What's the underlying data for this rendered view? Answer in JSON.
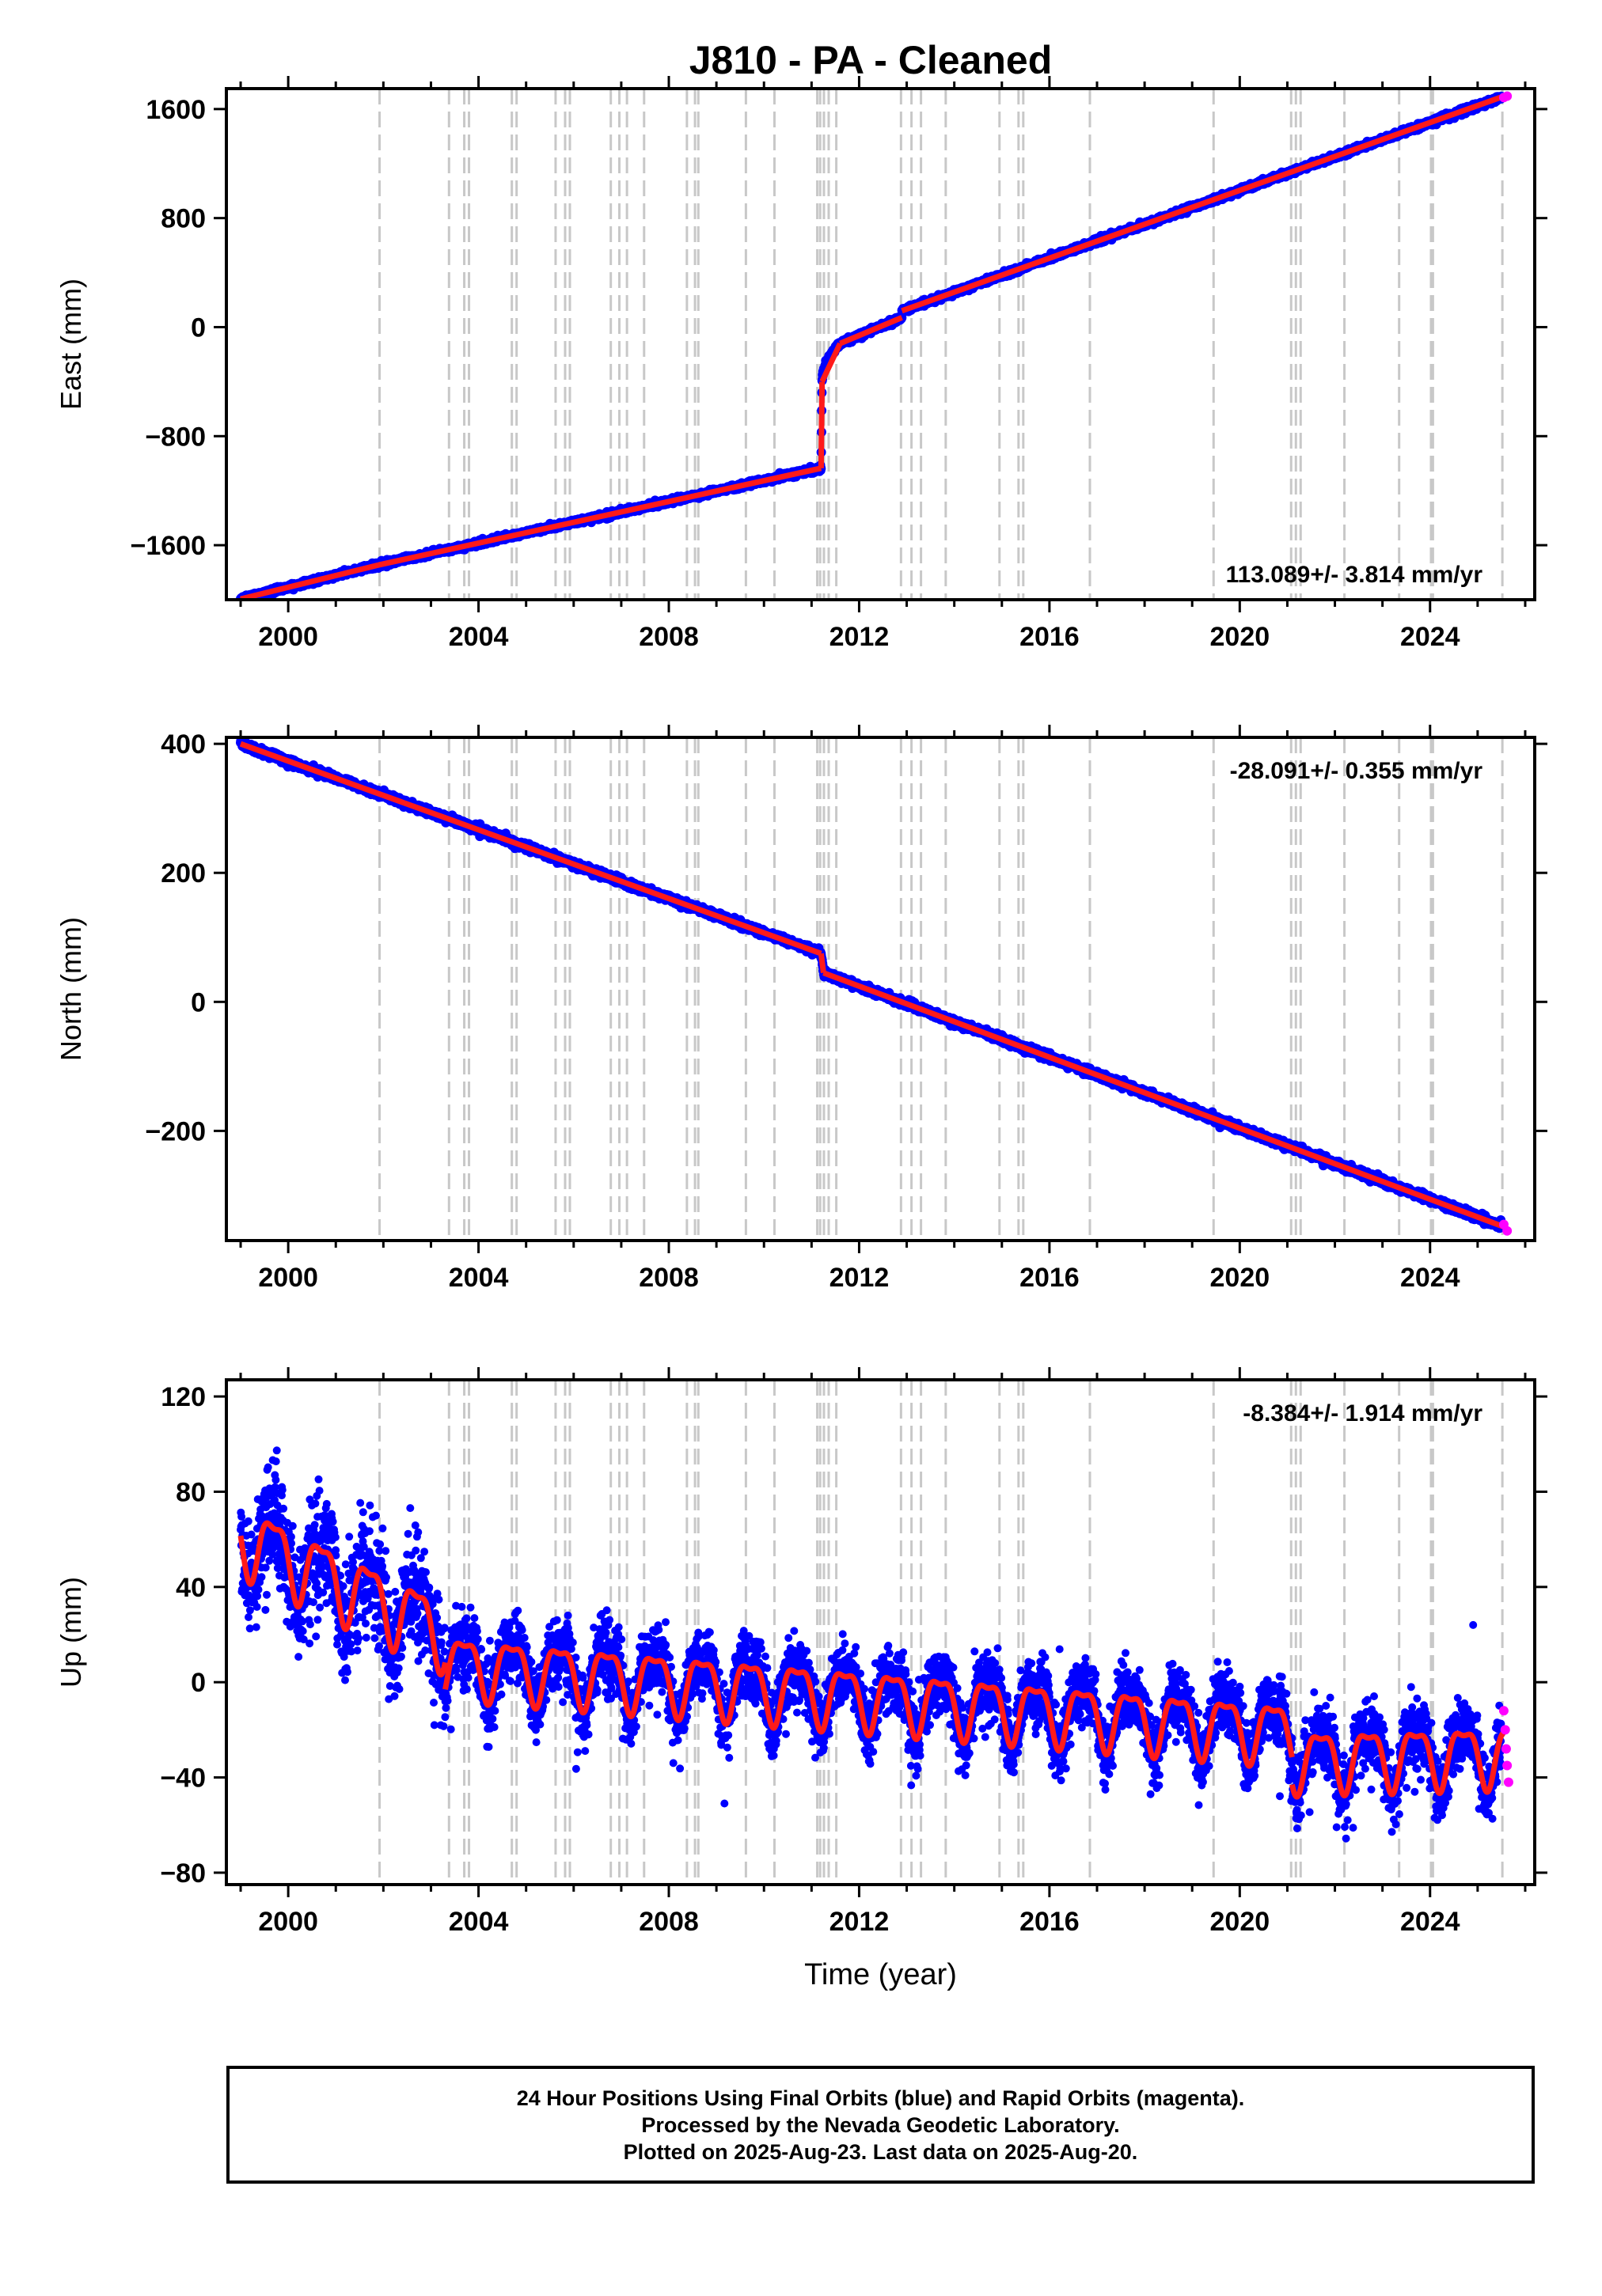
{
  "title": "J810  - PA - Cleaned",
  "colors": {
    "final": "#0000ff",
    "rapid": "#ff00ff",
    "model": "#ff1a1a",
    "events": "#c8c8c8",
    "frame": "#000000"
  },
  "chart_data": [
    {
      "type": "scatter",
      "id": "east",
      "ylabel": "East (mm)",
      "xlabel": "",
      "xlim": [
        1998.7,
        2026.2
      ],
      "ylim": [
        -2000,
        1750
      ],
      "xticks": [
        2000,
        2004,
        2008,
        2012,
        2016,
        2020,
        2024
      ],
      "yticks": [
        -1600,
        -800,
        0,
        800,
        1600
      ],
      "rate_label": "113.089+/- 3.814 mm/yr",
      "model": {
        "segments": [
          {
            "start": [
              1999.0,
              -1995
            ],
            "end": [
              2001.9,
              -1745
            ]
          },
          {
            "start": [
              2001.9,
              -1745
            ],
            "end": [
              2011.2,
              -1035
            ]
          },
          {
            "start": [
              2011.2,
              -1035
            ],
            "end": [
              2011.22,
              -400
            ]
          },
          {
            "start": [
              2011.22,
              -400
            ],
            "end": [
              2011.6,
              -120
            ]
          },
          {
            "start": [
              2011.6,
              -120
            ],
            "end": [
              2012.9,
              70
            ]
          },
          {
            "start": [
              2012.9,
              120
            ],
            "end": [
              2025.6,
              1700
            ]
          }
        ]
      },
      "final_points_sampled": [
        [
          1999.0,
          -1995
        ],
        [
          2000.0,
          -1915
        ],
        [
          2001.0,
          -1825
        ],
        [
          2002.0,
          -1745
        ],
        [
          2003.0,
          -1660
        ],
        [
          2004.0,
          -1580
        ],
        [
          2005.0,
          -1505
        ],
        [
          2006.0,
          -1430
        ],
        [
          2007.0,
          -1355
        ],
        [
          2008.0,
          -1280
        ],
        [
          2009.0,
          -1200
        ],
        [
          2010.0,
          -1125
        ],
        [
          2011.1,
          -1045
        ],
        [
          2011.25,
          -380
        ],
        [
          2011.6,
          -180
        ],
        [
          2012.5,
          30
        ],
        [
          2013.0,
          150
        ],
        [
          2014.0,
          310
        ],
        [
          2015.0,
          450
        ],
        [
          2016.0,
          590
        ],
        [
          2017.0,
          730
        ],
        [
          2018.0,
          860
        ],
        [
          2019.0,
          980
        ],
        [
          2020.0,
          1090
        ],
        [
          2021.0,
          1210
        ],
        [
          2022.0,
          1330
        ],
        [
          2023.0,
          1450
        ],
        [
          2024.0,
          1545
        ],
        [
          2025.0,
          1640
        ],
        [
          2025.6,
          1690
        ]
      ],
      "rapid_points": [
        [
          2025.55,
          1685
        ],
        [
          2025.62,
          1695
        ]
      ]
    },
    {
      "type": "scatter",
      "id": "north",
      "ylabel": "North (mm)",
      "xlabel": "",
      "xlim": [
        1998.7,
        2026.2
      ],
      "ylim": [
        -370,
        410
      ],
      "xticks": [
        2000,
        2004,
        2008,
        2012,
        2016,
        2020,
        2024
      ],
      "yticks": [
        -200,
        0,
        200,
        400
      ],
      "rate_label": "-28.091+/- 0.355 mm/yr",
      "model": {
        "segments": [
          {
            "start": [
              1999.0,
              400
            ],
            "end": [
              2011.2,
              75
            ]
          },
          {
            "start": [
              2011.2,
              75
            ],
            "end": [
              2011.25,
              45
            ]
          },
          {
            "start": [
              2011.25,
              45
            ],
            "end": [
              2025.6,
              -350
            ]
          }
        ]
      },
      "final_points_sampled": [
        [
          1999.0,
          400
        ],
        [
          2000.0,
          385
        ],
        [
          2001.0,
          355
        ],
        [
          2002.0,
          330
        ],
        [
          2003.0,
          300
        ],
        [
          2004.0,
          270
        ],
        [
          2005.0,
          235
        ],
        [
          2006.0,
          210
        ],
        [
          2007.0,
          180
        ],
        [
          2008.0,
          155
        ],
        [
          2009.0,
          130
        ],
        [
          2010.0,
          105
        ],
        [
          2011.1,
          85
        ],
        [
          2011.3,
          45
        ],
        [
          2012.0,
          20
        ],
        [
          2013.0,
          -10
        ],
        [
          2014.0,
          -40
        ],
        [
          2015.0,
          -70
        ],
        [
          2016.0,
          -95
        ],
        [
          2017.0,
          -125
        ],
        [
          2018.0,
          -155
        ],
        [
          2019.0,
          -180
        ],
        [
          2020.0,
          -205
        ],
        [
          2021.0,
          -240
        ],
        [
          2022.0,
          -265
        ],
        [
          2023.0,
          -295
        ],
        [
          2024.0,
          -320
        ],
        [
          2025.0,
          -340
        ],
        [
          2025.6,
          -350
        ]
      ],
      "rapid_points": [
        [
          2025.55,
          -345
        ],
        [
          2025.62,
          -355
        ]
      ]
    },
    {
      "type": "scatter",
      "id": "up",
      "ylabel": "Up (mm)",
      "xlabel": "Time (year)",
      "xlim": [
        1998.7,
        2026.2
      ],
      "ylim": [
        -85,
        127
      ],
      "xticks": [
        2000,
        2004,
        2008,
        2012,
        2016,
        2020,
        2024
      ],
      "yticks": [
        -80,
        -40,
        0,
        40,
        80,
        120
      ],
      "rate_label": "-8.384+/- 1.914 mm/yr",
      "model": {
        "pieces": [
          {
            "start": 1999.0,
            "end": 2003.3,
            "base": 62,
            "slope": -9.5,
            "amp": 14
          },
          {
            "start": 2003.3,
            "end": 2021.1,
            "base": 8,
            "slope": -1.6,
            "amp": 12
          },
          {
            "start": 2021.1,
            "end": 2025.6,
            "base": -32,
            "slope": 0.5,
            "amp": 12
          }
        ]
      },
      "final_points_sampled": [
        [
          1999.0,
          85
        ],
        [
          2000.0,
          95
        ],
        [
          2001.0,
          75
        ],
        [
          2002.0,
          70
        ],
        [
          2003.0,
          50
        ],
        [
          2004.0,
          10
        ],
        [
          2005.0,
          0
        ],
        [
          2006.0,
          -10
        ],
        [
          2007.0,
          5
        ],
        [
          2008.0,
          -5
        ],
        [
          2009.0,
          -10
        ],
        [
          2010.0,
          -20
        ],
        [
          2011.0,
          -30
        ],
        [
          2012.0,
          -15
        ],
        [
          2013.0,
          -5
        ],
        [
          2014.0,
          5
        ],
        [
          2015.0,
          10
        ],
        [
          2016.0,
          5
        ],
        [
          2017.0,
          5
        ],
        [
          2018.0,
          -10
        ],
        [
          2019.0,
          0
        ],
        [
          2020.0,
          5
        ],
        [
          2021.0,
          5
        ],
        [
          2021.5,
          -55
        ],
        [
          2022.0,
          -45
        ],
        [
          2023.0,
          -50
        ],
        [
          2024.0,
          -40
        ],
        [
          2025.0,
          -40
        ]
      ],
      "rapid_points": [
        [
          2025.55,
          -12
        ],
        [
          2025.58,
          -20
        ],
        [
          2025.6,
          -28
        ],
        [
          2025.62,
          -35
        ],
        [
          2025.65,
          -42
        ]
      ]
    }
  ],
  "event_years": [
    2001.92,
    2003.38,
    2003.7,
    2003.8,
    2004.7,
    2004.8,
    2005.62,
    2005.82,
    2005.92,
    2006.78,
    2006.96,
    2007.12,
    2007.48,
    2008.38,
    2008.55,
    2008.62,
    2009.62,
    2010.22,
    2011.12,
    2011.18,
    2011.26,
    2011.36,
    2011.52,
    2012.88,
    2013.1,
    2013.3,
    2013.82,
    2014.95,
    2015.35,
    2015.45,
    2016.85,
    2019.45,
    2021.08,
    2021.18,
    2021.28,
    2022.2,
    2023.35,
    2024.02,
    2024.06,
    2025.52
  ],
  "footer": {
    "line1": "24 Hour Positions Using Final Orbits (blue) and Rapid Orbits (magenta).",
    "line2": "Processed by the Nevada Geodetic Laboratory.",
    "line3": "Plotted on 2025-Aug-23. Last data on 2025-Aug-20."
  }
}
